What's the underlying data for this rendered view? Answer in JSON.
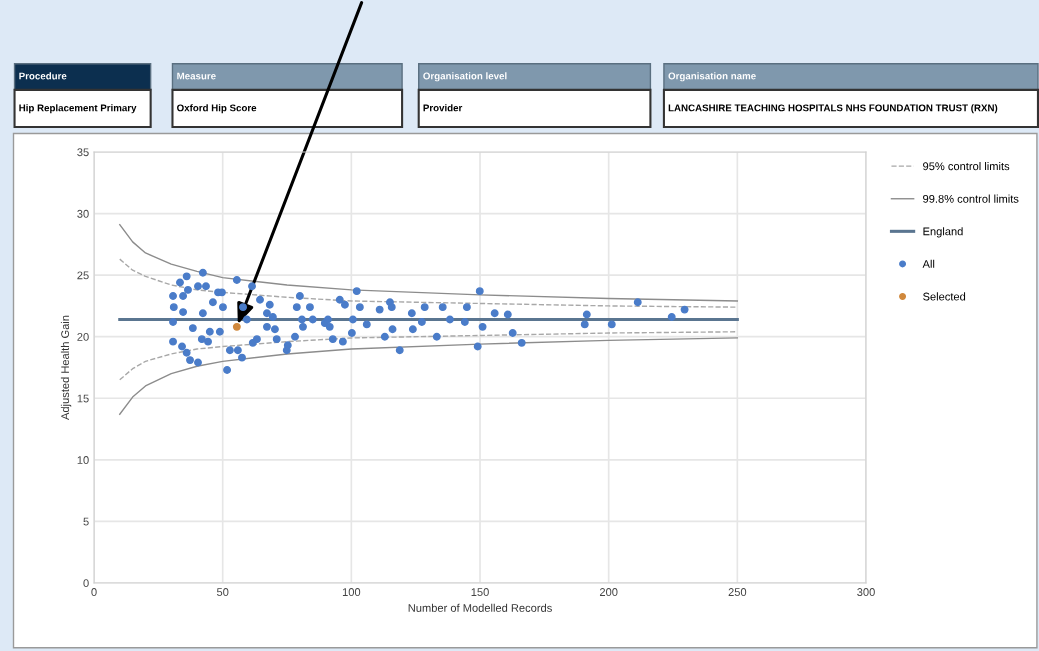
{
  "chart_data": {
    "type": "scatter",
    "xlabel": "Number of Modelled Records",
    "ylabel": "Adjusted Health Gain",
    "annotations": [
      "Procedure",
      "Hip Replacement Primary",
      "Measure",
      "Oxford Hip Score",
      "Organisation level",
      "Provider",
      "Organisation name",
      "LANCASHIRE TEACHING HOSPITALS NHS FOUNDATION TRUST (RXN)"
    ],
    "xlim": [
      0,
      300
    ],
    "xticks": [
      0,
      50,
      100,
      150,
      200,
      250,
      300
    ],
    "ylim": [
      0,
      35
    ],
    "yticks": [
      0,
      5,
      10,
      15,
      20,
      25,
      30,
      35
    ],
    "grid": true,
    "legend": "right",
    "marker": "circle",
    "series": [
      {
        "name": "95% control limits",
        "type": "line",
        "marker": "none",
        "line_style": "dashed",
        "color": "#a8a8a8",
        "x": [
          10,
          15,
          20,
          30,
          40,
          50,
          75,
          100,
          150,
          200,
          250
        ],
        "values": [
          26.3,
          25.4,
          24.9,
          24.2,
          23.8,
          23.6,
          23.2,
          22.9,
          22.7,
          22.5,
          22.4
        ]
      },
      {
        "type": "line",
        "marker": "none",
        "line_style": "dashed",
        "color": "#a8a8a8",
        "x": [
          10,
          15,
          20,
          30,
          40,
          50,
          75,
          100,
          150,
          200,
          250
        ],
        "values": [
          16.5,
          17.4,
          18.0,
          18.6,
          19.0,
          19.2,
          19.6,
          19.9,
          20.1,
          20.3,
          20.4
        ]
      },
      {
        "name": "99.8% control limits",
        "type": "line",
        "marker": "none",
        "line_style": "solid",
        "color": "#8c8c8c",
        "x": [
          10,
          15,
          20,
          30,
          40,
          50,
          75,
          100,
          150,
          200,
          250
        ],
        "values": [
          29.1,
          27.7,
          26.8,
          25.9,
          25.3,
          24.8,
          24.2,
          23.8,
          23.4,
          23.1,
          22.9
        ]
      },
      {
        "type": "line",
        "marker": "none",
        "line_style": "solid",
        "color": "#8c8c8c",
        "x": [
          10,
          15,
          20,
          30,
          40,
          50,
          75,
          100,
          150,
          200,
          250
        ],
        "values": [
          13.7,
          15.1,
          16.0,
          17.0,
          17.6,
          18.0,
          18.6,
          19.0,
          19.4,
          19.7,
          19.9
        ]
      },
      {
        "name": "England",
        "type": "line",
        "marker": "none",
        "line_style": "solid",
        "color": "#5a7590",
        "x": [
          10,
          250
        ],
        "values": [
          21.4,
          21.4
        ]
      },
      {
        "name": "All",
        "color": "#4a7cc9",
        "x": [
          30.7,
          31,
          30.7,
          30.7,
          33.4,
          34.6,
          34.6,
          34.2,
          36,
          36.5,
          36,
          37.3,
          38.4,
          40.4,
          40.4,
          42.3,
          42.3,
          43.5,
          41.9,
          44.3,
          45,
          46.2,
          48.2,
          48.9,
          50.1,
          49.7,
          51.7,
          52.8,
          55.5,
          55.9,
          57.5,
          57.9,
          59.4,
          61.4,
          61.7,
          63.3,
          64.5,
          67.2,
          67.2,
          68.3,
          69.5,
          70.3,
          71,
          74.9,
          75.3,
          78.1,
          78.8,
          80,
          80.8,
          81.2,
          83.9,
          85,
          89.7,
          90.9,
          91.6,
          92.8,
          95.5,
          96.7,
          97.5,
          100.2,
          100.6,
          102.1,
          103.3,
          106,
          111,
          113,
          115,
          116,
          118.8,
          115.7,
          123.5,
          123.9,
          127.4,
          128.5,
          133.2,
          135.5,
          138.3,
          144.1,
          144.9,
          149.1,
          149.9,
          151,
          155.7,
          160.8,
          162.7,
          166.2,
          191.5,
          190.7,
          201.2,
          211.3,
          224.5,
          229.5
        ],
        "values": [
          23.3,
          22.4,
          21.2,
          19.6,
          24.4,
          23.3,
          22.0,
          19.2,
          24.9,
          23.8,
          18.7,
          18.1,
          20.7,
          24.1,
          17.9,
          25.2,
          21.9,
          24.1,
          19.8,
          19.6,
          20.4,
          22.8,
          23.6,
          20.4,
          22.4,
          23.6,
          17.3,
          18.9,
          24.6,
          18.9,
          18.3,
          22.4,
          21.4,
          24.1,
          19.5,
          19.8,
          23.0,
          21.9,
          20.8,
          22.6,
          21.6,
          20.6,
          19.8,
          18.9,
          19.3,
          20.0,
          22.4,
          23.3,
          21.4,
          20.8,
          22.4,
          21.4,
          21.1,
          21.4,
          20.8,
          19.8,
          23.0,
          19.6,
          22.6,
          20.3,
          21.4,
          23.7,
          22.4,
          21.0,
          22.2,
          20.0,
          22.8,
          20.6,
          18.9,
          22.4,
          21.9,
          20.6,
          21.2,
          22.4,
          20.0,
          22.4,
          21.4,
          21.2,
          22.4,
          19.2,
          23.7,
          20.8,
          21.9,
          21.8,
          20.3,
          19.5,
          21.8,
          21.0,
          21.0,
          22.8,
          21.6,
          22.2
        ]
      },
      {
        "name": "Selected",
        "color": "#d0883c",
        "x": [
          55.5
        ],
        "values": [
          20.8
        ]
      }
    ]
  }
}
